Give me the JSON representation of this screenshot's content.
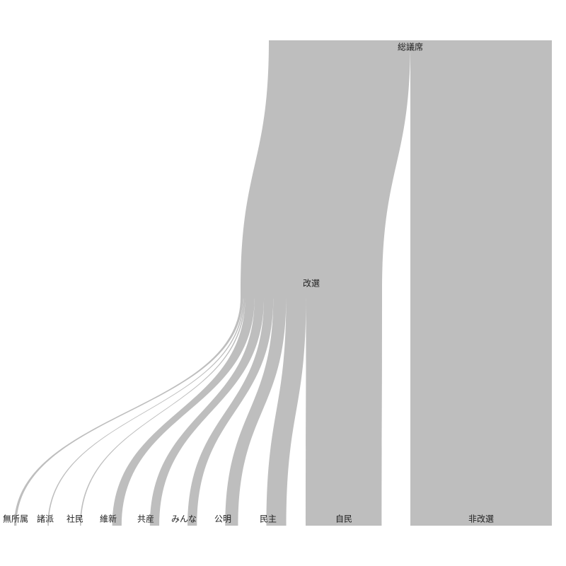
{
  "chart_data": {
    "type": "sankey",
    "title": "",
    "color": "#bebebe",
    "root": {
      "name": "総議席",
      "value": 242
    },
    "nodes": [
      {
        "id": "root",
        "name": "総議席"
      },
      {
        "id": "kaisen",
        "name": "改選"
      },
      {
        "id": "hikaisen",
        "name": "非改選"
      },
      {
        "id": "mushozoku",
        "name": "無所属"
      },
      {
        "id": "shoha",
        "name": "諸派"
      },
      {
        "id": "shamin",
        "name": "社民"
      },
      {
        "id": "ishin",
        "name": "維新"
      },
      {
        "id": "kyosan",
        "name": "共産"
      },
      {
        "id": "minna",
        "name": "みんな"
      },
      {
        "id": "komei",
        "name": "公明"
      },
      {
        "id": "minshu",
        "name": "民主"
      },
      {
        "id": "jimin",
        "name": "自民"
      }
    ],
    "links": [
      {
        "source": "root",
        "target": "kaisen",
        "value": 121
      },
      {
        "source": "root",
        "target": "hikaisen",
        "value": 121
      },
      {
        "source": "kaisen",
        "target": "mushozoku",
        "value": 2
      },
      {
        "source": "kaisen",
        "target": "shoha",
        "value": 1
      },
      {
        "source": "kaisen",
        "target": "shamin",
        "value": 1
      },
      {
        "source": "kaisen",
        "target": "ishin",
        "value": 8
      },
      {
        "source": "kaisen",
        "target": "kyosan",
        "value": 8
      },
      {
        "source": "kaisen",
        "target": "minna",
        "value": 8
      },
      {
        "source": "kaisen",
        "target": "komei",
        "value": 11
      },
      {
        "source": "kaisen",
        "target": "minshu",
        "value": 17
      },
      {
        "source": "kaisen",
        "target": "jimin",
        "value": 65
      }
    ]
  }
}
